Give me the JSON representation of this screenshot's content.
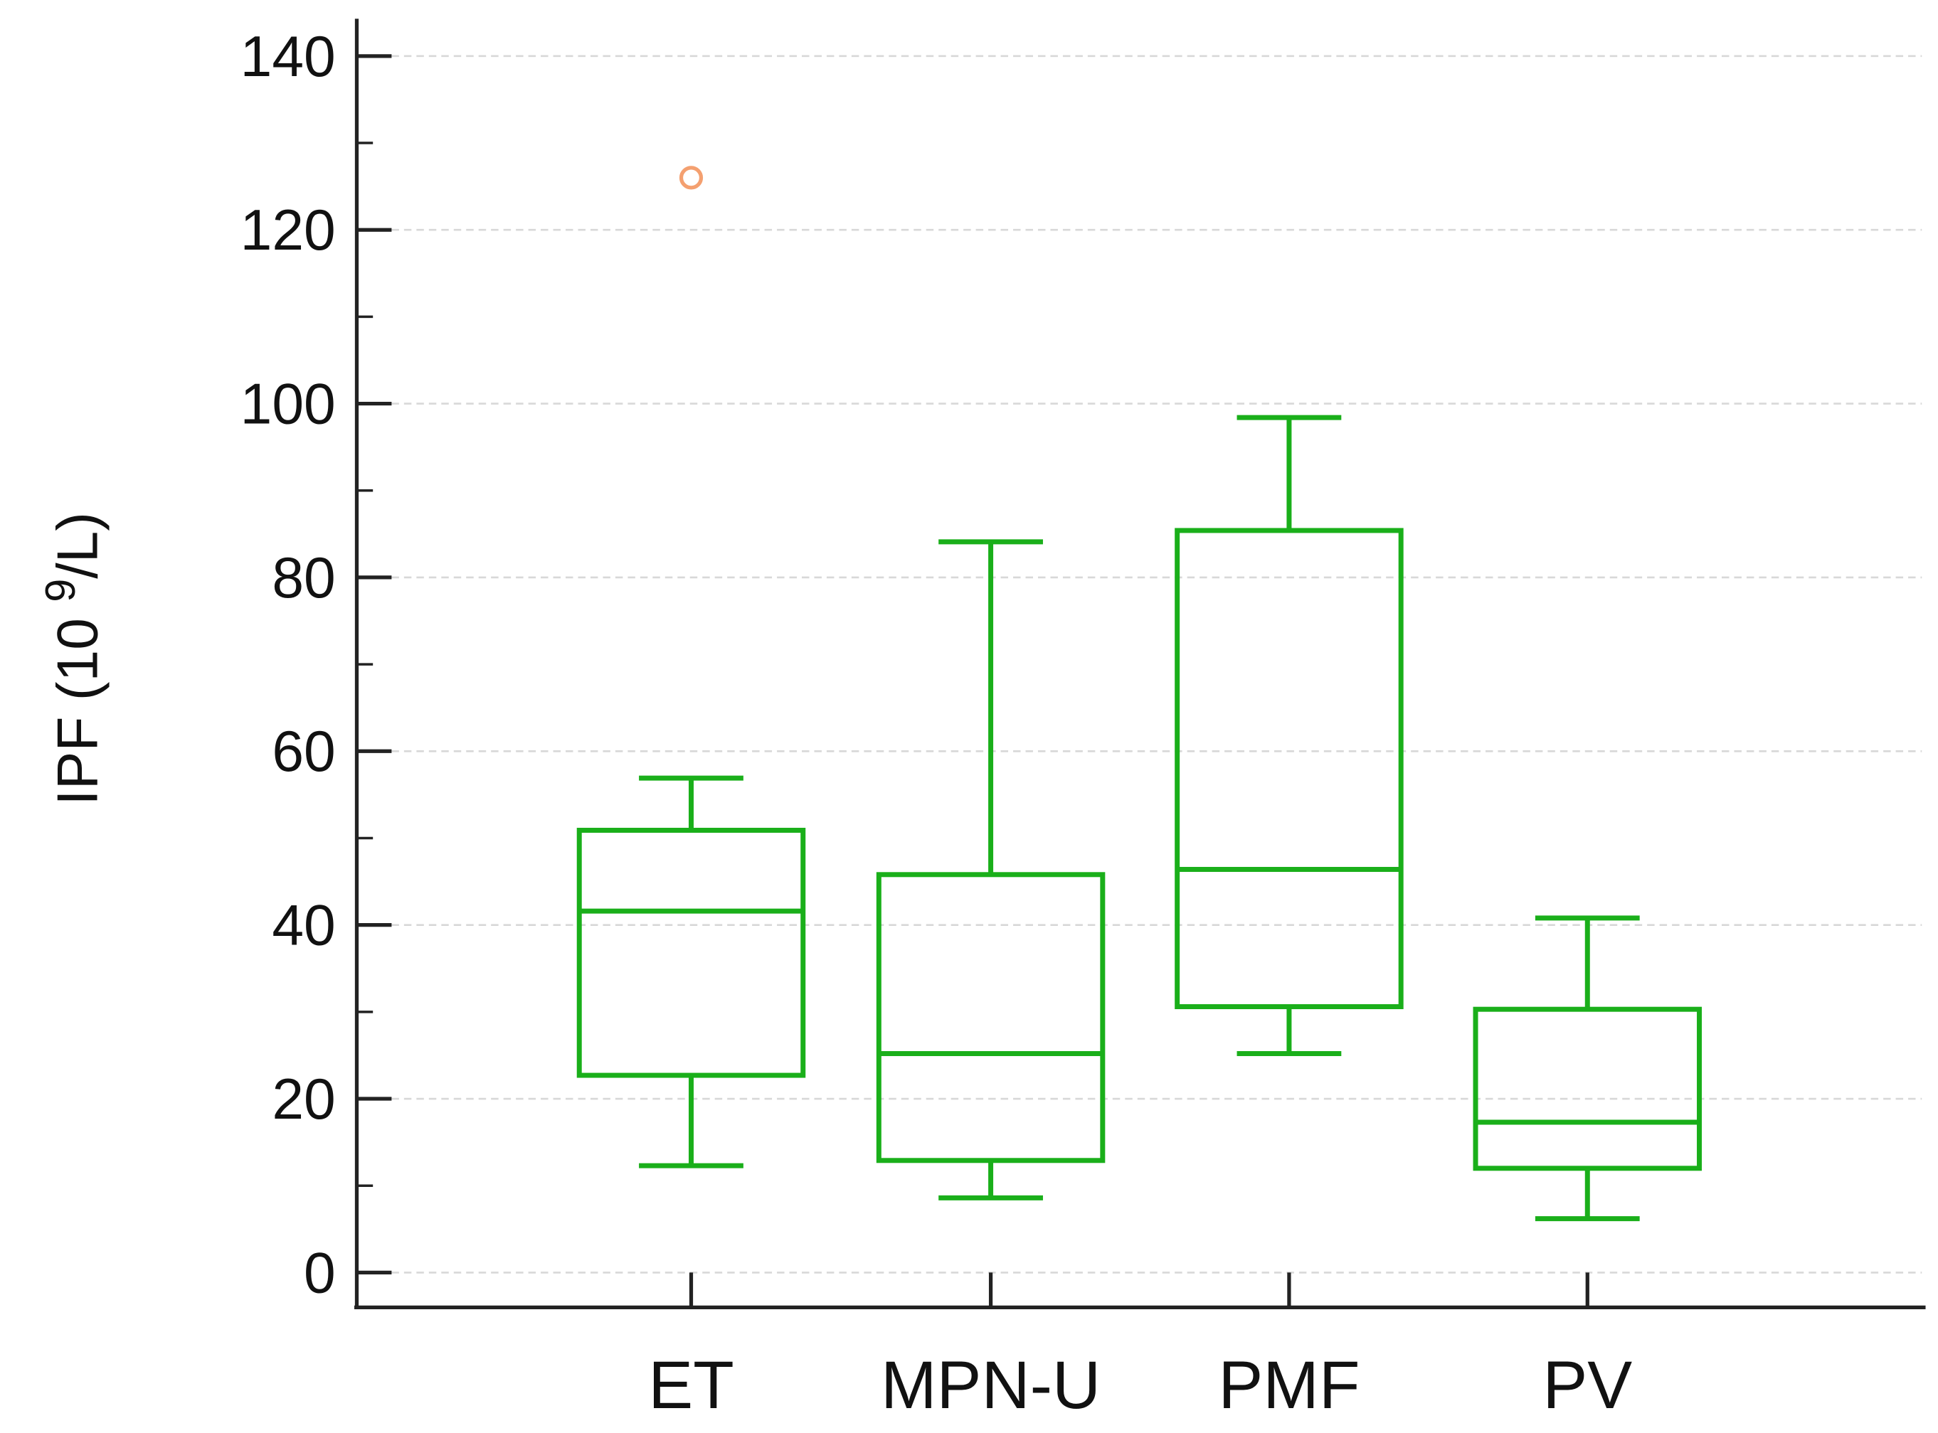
{
  "chart_data": {
    "type": "box",
    "title": "",
    "xlabel": "",
    "ylabel": "IPF (10 9/L)",
    "ylabel_parts": {
      "pre": "IPF (10 ",
      "sup": "9",
      "post": "/L)"
    },
    "ylim": [
      0,
      140
    ],
    "yticks": [
      0,
      20,
      40,
      60,
      80,
      100,
      120,
      140
    ],
    "ytick_labels": [
      "0",
      "20",
      "40",
      "60",
      "80",
      "100",
      "120",
      "140"
    ],
    "grid": true,
    "categories": [
      "ET",
      "MPN-U",
      "PMF",
      "PV"
    ],
    "boxes": [
      {
        "name": "ET",
        "whisker_low": 12.3,
        "q1": 22.7,
        "median": 41.6,
        "q3": 50.9,
        "whisker_high": 56.9,
        "outliers": [
          126
        ]
      },
      {
        "name": "MPN-U",
        "whisker_low": 8.6,
        "q1": 12.9,
        "median": 25.2,
        "q3": 45.8,
        "whisker_high": 84.1,
        "outliers": []
      },
      {
        "name": "PMF",
        "whisker_low": 25.2,
        "q1": 30.6,
        "median": 46.4,
        "q3": 85.4,
        "whisker_high": 98.4,
        "outliers": []
      },
      {
        "name": "PV",
        "whisker_low": 6.2,
        "q1": 12.0,
        "median": 17.3,
        "q3": 30.3,
        "whisker_high": 40.8,
        "outliers": []
      }
    ],
    "colors": {
      "box": "#1aaf1a",
      "outlier": "#f4a070",
      "axis": "#222222",
      "grid": "#d8d8d8"
    }
  }
}
